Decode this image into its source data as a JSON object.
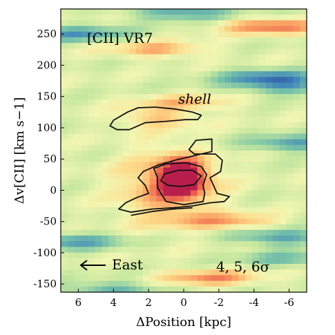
{
  "chart_data": {
    "type": "heatmap",
    "panel_label": "[CII] VR7",
    "xlabel": "ΔPosition [kpc]",
    "ylabel": "Δv[CII] [km s−1]",
    "xlim": [
      7,
      -7
    ],
    "ylim": [
      -163,
      290
    ],
    "x_reversed": true,
    "xticks": [
      6,
      4,
      2,
      0,
      -2,
      -4,
      -6
    ],
    "xtick_labels": [
      "6",
      "4",
      "2",
      "0",
      "-2",
      "-4",
      "-6"
    ],
    "yticks": [
      -150,
      -100,
      -50,
      0,
      50,
      100,
      150,
      200,
      250
    ],
    "ytick_labels": [
      "-150",
      "-100",
      "-50",
      "0",
      "50",
      "100",
      "150",
      "200",
      "250"
    ],
    "colormap": "Spectral_r",
    "contour_levels_label": "4, 5, 6σ",
    "annotations": [
      {
        "text": "shell",
        "x": -0.8,
        "y": 143
      },
      {
        "text": "East",
        "x": 4.2,
        "y": -117,
        "arrow": "left"
      }
    ],
    "emission_components": [
      {
        "name": "core",
        "x": 0.1,
        "y": 20,
        "peak": 1.0
      },
      {
        "name": "extended",
        "x": 0.9,
        "y": 5,
        "peak": 0.7
      },
      {
        "name": "shell",
        "x": 1.5,
        "y": 115,
        "peak": 0.58
      }
    ],
    "contours_4sigma": [
      [
        [
          3.3,
          -20
        ],
        [
          3.7,
          -30
        ],
        [
          3.0,
          -35
        ],
        [
          1.8,
          -30
        ],
        [
          0.6,
          -28
        ],
        [
          -0.5,
          -25
        ],
        [
          -1.5,
          -20
        ],
        [
          -2.3,
          -18
        ],
        [
          -2.6,
          -10
        ],
        [
          -1.9,
          -5
        ],
        [
          -1.5,
          20
        ],
        [
          -2.1,
          30
        ],
        [
          -2.2,
          48
        ],
        [
          -1.8,
          58
        ],
        [
          -0.6,
          58
        ],
        [
          -0.3,
          65
        ],
        [
          -0.7,
          80
        ],
        [
          -1.6,
          82
        ],
        [
          -1.6,
          62
        ],
        [
          -1.0,
          58
        ],
        [
          0.5,
          48
        ],
        [
          1.5,
          40
        ],
        [
          2.3,
          30
        ],
        [
          2.6,
          20
        ],
        [
          2.2,
          8
        ],
        [
          2.0,
          -5
        ],
        [
          2.7,
          -12
        ]
      ],
      [
        [
          4.0,
          112
        ],
        [
          4.2,
          103
        ],
        [
          3.8,
          97
        ],
        [
          3.1,
          97
        ],
        [
          2.2,
          108
        ],
        [
          1.1,
          110
        ],
        [
          -0.1,
          113
        ],
        [
          -0.8,
          113
        ],
        [
          -1.0,
          120
        ],
        [
          -0.5,
          125
        ],
        [
          0.5,
          130
        ],
        [
          1.6,
          133
        ],
        [
          2.6,
          132
        ],
        [
          3.2,
          125
        ]
      ]
    ],
    "contours_5sigma": [
      [
        [
          3.0,
          -40
        ],
        [
          1.8,
          -34
        ],
        [
          0.6,
          -30
        ],
        [
          -0.5,
          -28
        ]
      ],
      [
        [
          1.5,
          20
        ],
        [
          1.7,
          35
        ],
        [
          1.0,
          42
        ],
        [
          -0.1,
          44
        ],
        [
          -1.0,
          38
        ],
        [
          -1.3,
          25
        ],
        [
          -1.1,
          8
        ],
        [
          -1.2,
          -5
        ],
        [
          -1.1,
          -18
        ],
        [
          0.0,
          -23
        ],
        [
          1.0,
          -18
        ],
        [
          1.3,
          -5
        ],
        [
          1.5,
          5
        ]
      ]
    ],
    "contours_6sigma": [
      [
        [
          1.3,
          15
        ],
        [
          1.1,
          26
        ],
        [
          0.3,
          32
        ],
        [
          -0.5,
          32
        ],
        [
          -1.0,
          23
        ],
        [
          -0.6,
          9
        ],
        [
          0.2,
          6
        ],
        [
          0.9,
          8
        ]
      ]
    ],
    "noise_bands": [
      {
        "y": 262,
        "x": -5.0,
        "sign": 1,
        "amp": 0.35
      },
      {
        "y": 250,
        "x": 6.0,
        "sign": -1,
        "amp": 0.3
      },
      {
        "y": 180,
        "x": -4.8,
        "sign": -1,
        "amp": 0.35
      },
      {
        "y": 165,
        "x": -6.0,
        "sign": -1,
        "amp": 0.25
      },
      {
        "y": 75,
        "x": -6.4,
        "sign": -1,
        "amp": 0.3
      },
      {
        "y": -75,
        "x": -5.5,
        "sign": -1,
        "amp": 0.3
      },
      {
        "y": -82,
        "x": 6.3,
        "sign": -1,
        "amp": 0.3
      },
      {
        "y": -110,
        "x": -6.0,
        "sign": -1,
        "amp": 0.2
      },
      {
        "y": -160,
        "x": 4.0,
        "sign": -1,
        "amp": 0.25
      },
      {
        "y": 285,
        "x": 0.0,
        "sign": -1,
        "amp": 0.3
      },
      {
        "y": 225,
        "x": 1.5,
        "sign": 1,
        "amp": 0.25
      },
      {
        "y": 140,
        "x": 0.0,
        "sign": 1,
        "amp": 0.2
      },
      {
        "y": -50,
        "x": -2.5,
        "sign": 1,
        "amp": 0.25
      },
      {
        "y": -140,
        "x": -1.5,
        "sign": 1,
        "amp": 0.3
      }
    ]
  }
}
